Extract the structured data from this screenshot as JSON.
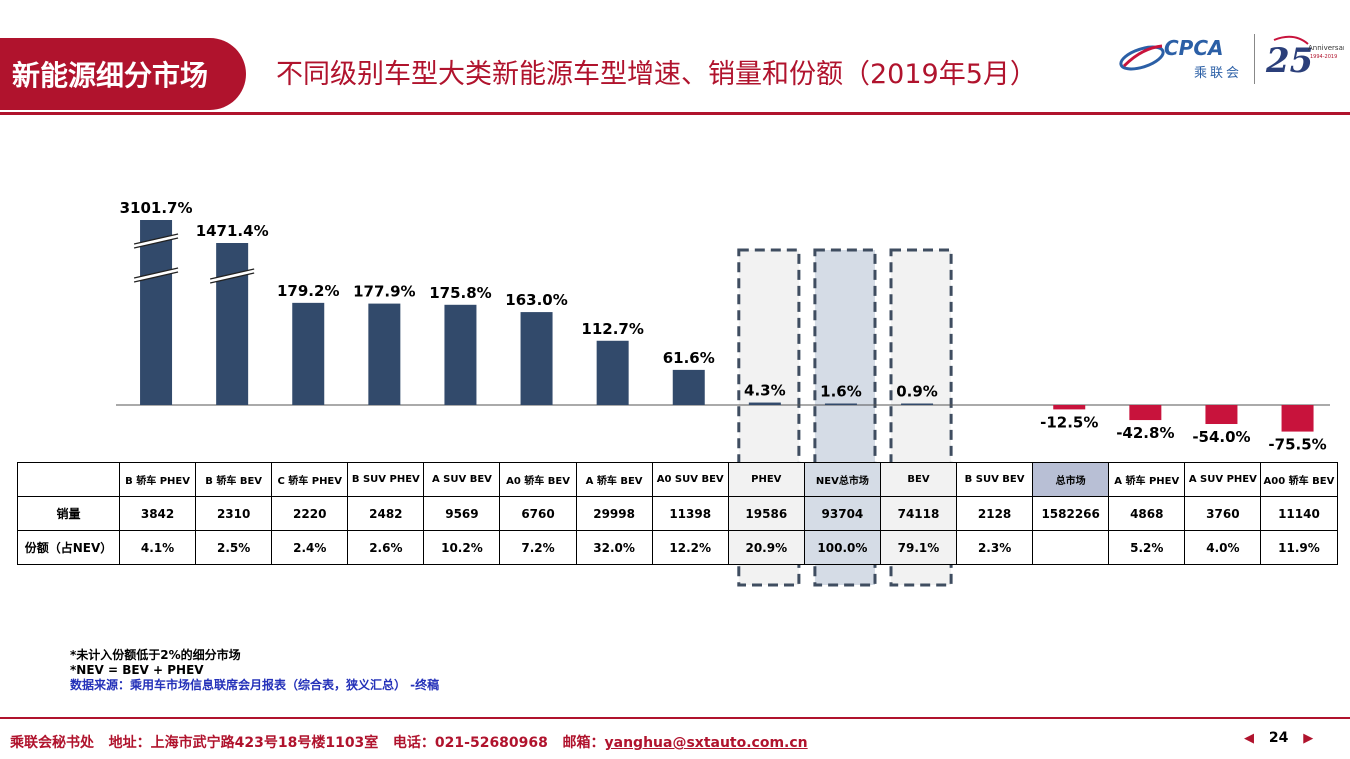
{
  "header": {
    "tag": "新能源细分市场",
    "title": "不同级别车型大类新能源车型增速、销量和份额（2019年5月）"
  },
  "logos": {
    "cpca": "CPCA",
    "cpca_cn": "乘联会",
    "anniversary_number": "25",
    "anniversary_word": "Anniversary",
    "anniversary_years": "1994-2019"
  },
  "colors": {
    "positive_bar": "#324a6b",
    "negative_bar": "#c8133c",
    "highlight_gray": "#f2f2f2",
    "highlight_blue": "#d5dce6",
    "brand_red": "#b0132d"
  },
  "chart_data": {
    "type": "bar",
    "categories": [
      "B 轿车 PHEV",
      "B 轿车 BEV",
      "C 轿车 PHEV",
      "B SUV PHEV",
      "A SUV BEV",
      "A0 轿车 BEV",
      "A 轿车 BEV",
      "A0 SUV BEV",
      "PHEV",
      "NEV总市场",
      "BEV",
      "B SUV BEV",
      "总市场",
      "A 轿车 PHEV",
      "A SUV PHEV",
      "A00 轿车 BEV"
    ],
    "values": [
      3101.7,
      1471.4,
      179.2,
      177.9,
      175.8,
      163.0,
      112.7,
      61.6,
      4.3,
      1.6,
      0.9,
      null,
      -12.5,
      -42.8,
      -54.0,
      -75.5
    ],
    "value_labels": [
      "3101.7%",
      "1471.4%",
      "179.2%",
      "177.9%",
      "175.8%",
      "163.0%",
      "112.7%",
      "61.6%",
      "4.3%",
      "1.6%",
      "0.9%",
      "",
      "-12.5%",
      "-42.8%",
      "-54.0%",
      "-75.5%"
    ],
    "broken_axis_bars": [
      0,
      1
    ],
    "highlighted_columns": [
      8,
      9,
      10
    ],
    "title": "",
    "xlabel": "",
    "ylabel": ""
  },
  "table": {
    "row_heads": [
      "",
      "销量",
      "份额（占NEV）"
    ],
    "sales": [
      "3842",
      "2310",
      "2220",
      "2482",
      "9569",
      "6760",
      "29998",
      "11398",
      "19586",
      "93704",
      "74118",
      "2128",
      "1582266",
      "4868",
      "3760",
      "11140"
    ],
    "shares": [
      "4.1%",
      "2.5%",
      "2.4%",
      "2.6%",
      "10.2%",
      "7.2%",
      "32.0%",
      "12.2%",
      "20.9%",
      "100.0%",
      "79.1%",
      "2.3%",
      "",
      "5.2%",
      "4.0%",
      "11.9%"
    ],
    "header_labels": [
      "B 轿车 PHEV",
      "B 轿车 BEV",
      "C 轿车 PHEV",
      "B SUV PHEV",
      "A SUV BEV",
      "A0 轿车 BEV",
      "A 轿车 BEV",
      "A0 SUV BEV",
      "PHEV",
      "NEV总市场",
      "BEV",
      "B SUV BEV",
      "总市场",
      "A 轿车 PHEV",
      "A SUV PHEV",
      "A00 轿车 BEV"
    ]
  },
  "notes": {
    "line1": "*未计入份额低于2%的细分市场",
    "line2": "*NEV = BEV + PHEV",
    "source": "数据来源：乘用车市场信息联席会月报表（综合表，狭义汇总） -终稿"
  },
  "footer": {
    "org": "乘联会秘书处",
    "address": "地址：上海市武宁路423号18号楼1103室",
    "phone": "电话：021-52680968",
    "email_label": "邮箱：",
    "email": "yanghua@sxtauto.com.cn",
    "page": "24"
  }
}
